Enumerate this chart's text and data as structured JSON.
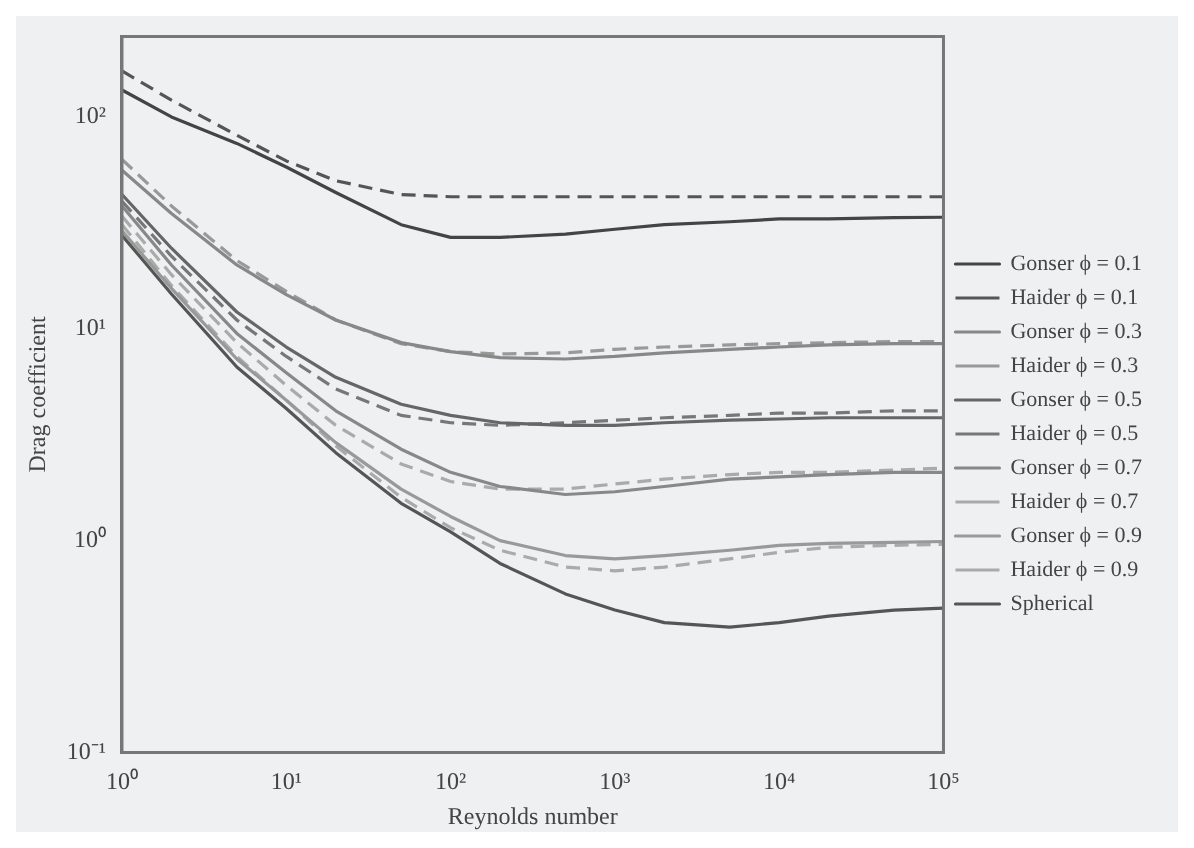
{
  "chart_data": {
    "type": "line",
    "xlabel": "Reynolds number",
    "ylabel": "Drag coefficient",
    "log": "xy",
    "grid": false,
    "legend": "right",
    "marker": "none",
    "x": [
      1,
      2,
      5,
      10,
      20,
      50,
      100,
      200,
      500,
      1000,
      2000,
      5000,
      10000,
      20000,
      50000,
      100000
    ],
    "xlim": [
      1,
      100000
    ],
    "xticks": [
      {
        "value": 1,
        "label": "10⁰"
      },
      {
        "value": 10,
        "label": "10¹"
      },
      {
        "value": 100,
        "label": "10²"
      },
      {
        "value": 1000,
        "label": "10³"
      },
      {
        "value": 10000,
        "label": "10⁴"
      },
      {
        "value": 100000,
        "label": "10⁵"
      }
    ],
    "ylim": [
      0.1,
      240
    ],
    "yticks": [
      {
        "value": 0.1,
        "label": "10⁻¹"
      },
      {
        "value": 1,
        "label": "10⁰"
      },
      {
        "value": 10,
        "label": "10¹"
      },
      {
        "value": 100,
        "label": "10²"
      }
    ],
    "series": [
      {
        "name": "Gonser ϕ = 0.1",
        "color": "#444444",
        "line_style": "solid",
        "values": [
          134,
          100,
          75,
          58,
          44,
          31,
          27,
          27,
          28,
          29.5,
          31,
          32,
          33,
          33,
          33.5,
          33.6
        ]
      },
      {
        "name": "Haider ϕ = 0.1",
        "color": "#555555",
        "line_style": "dashed",
        "values": [
          165,
          120,
          82,
          62,
          50,
          43,
          42,
          42,
          42,
          42,
          42,
          42,
          42,
          42,
          42,
          42
        ]
      },
      {
        "name": "Gonser ϕ = 0.3",
        "color": "#888888",
        "line_style": "solid",
        "values": [
          56,
          35,
          20,
          14.5,
          11,
          8.6,
          7.8,
          7.3,
          7.2,
          7.4,
          7.7,
          8,
          8.2,
          8.4,
          8.5,
          8.5
        ]
      },
      {
        "name": "Haider ϕ = 0.3",
        "color": "#999999",
        "line_style": "dashed",
        "values": [
          63,
          38,
          21,
          15,
          11,
          8.5,
          7.8,
          7.6,
          7.7,
          8,
          8.2,
          8.4,
          8.5,
          8.6,
          8.7,
          8.7
        ]
      },
      {
        "name": "Gonser ϕ = 0.5",
        "color": "#666666",
        "line_style": "solid",
        "values": [
          43,
          24,
          12,
          8.2,
          5.9,
          4.4,
          3.9,
          3.6,
          3.5,
          3.5,
          3.6,
          3.7,
          3.75,
          3.8,
          3.8,
          3.8
        ]
      },
      {
        "name": "Haider ϕ = 0.5",
        "color": "#777777",
        "line_style": "dashed",
        "values": [
          40,
          22,
          11,
          7.4,
          5.2,
          3.9,
          3.6,
          3.5,
          3.6,
          3.7,
          3.8,
          3.9,
          4,
          4,
          4.1,
          4.1
        ]
      },
      {
        "name": "Gonser ϕ = 0.7",
        "color": "#888888",
        "line_style": "solid",
        "values": [
          38,
          20,
          9.5,
          6.2,
          4.1,
          2.7,
          2.1,
          1.8,
          1.65,
          1.7,
          1.8,
          1.95,
          2,
          2.05,
          2.1,
          2.1
        ]
      },
      {
        "name": "Haider ϕ = 0.7",
        "color": "#aaaaaa",
        "line_style": "dashed",
        "values": [
          34,
          18,
          8.6,
          5.4,
          3.5,
          2.3,
          1.9,
          1.75,
          1.75,
          1.85,
          1.95,
          2.05,
          2.1,
          2.1,
          2.15,
          2.2
        ]
      },
      {
        "name": "Gonser ϕ = 0.9",
        "color": "#999999",
        "line_style": "solid",
        "values": [
          29,
          15.5,
          7.2,
          4.6,
          2.9,
          1.75,
          1.3,
          1,
          0.85,
          0.82,
          0.85,
          0.9,
          0.95,
          0.97,
          0.98,
          0.99
        ]
      },
      {
        "name": "Haider ϕ = 0.9",
        "color": "#aaaaaa",
        "line_style": "dashed",
        "values": [
          31,
          16,
          7.4,
          4.6,
          2.8,
          1.6,
          1.15,
          0.9,
          0.75,
          0.72,
          0.75,
          0.82,
          0.88,
          0.93,
          0.95,
          0.96
        ]
      },
      {
        "name": "Spherical",
        "color": "#555555",
        "line_style": "solid",
        "values": [
          27.6,
          14.6,
          6.6,
          4.2,
          2.6,
          1.5,
          1.1,
          0.78,
          0.56,
          0.47,
          0.41,
          0.39,
          0.41,
          0.44,
          0.47,
          0.48
        ]
      }
    ]
  }
}
